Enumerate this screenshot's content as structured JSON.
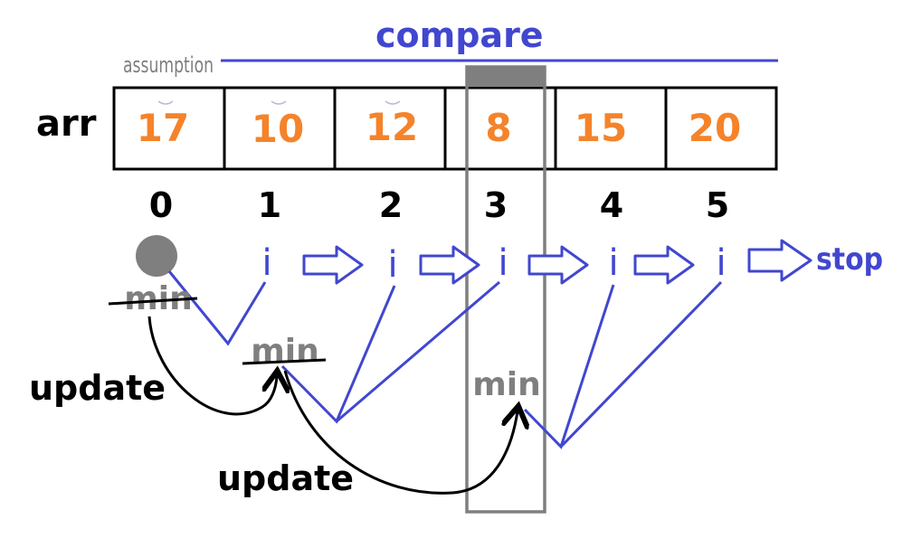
{
  "header": {
    "assumption_label": "assumption",
    "compare_label": "compare"
  },
  "array": {
    "name": "arr",
    "values": [
      "17",
      "10",
      "12",
      "8",
      "15",
      "20"
    ],
    "indices": [
      "0",
      "1",
      "2",
      "3",
      "4",
      "5"
    ]
  },
  "iterator": {
    "label": "i",
    "stop_label": "stop"
  },
  "min_markers": {
    "label": "min"
  },
  "update_labels": [
    "update",
    "update"
  ],
  "colors": {
    "blue": "#4147cf",
    "orange": "#f5832a",
    "gray": "#7f7f7f",
    "black": "#000000"
  }
}
